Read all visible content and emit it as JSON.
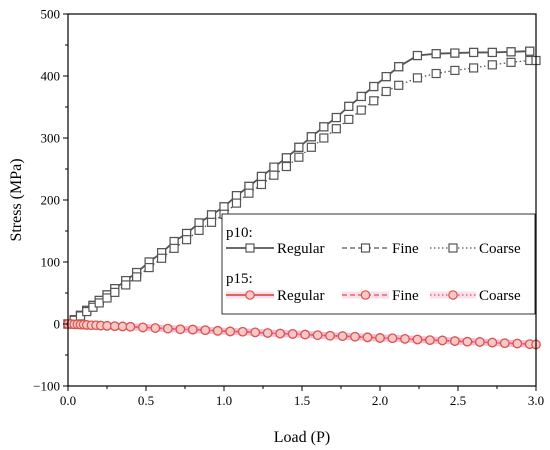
{
  "chart_data": {
    "type": "line",
    "title": "",
    "xlabel": "Load (P)",
    "ylabel": "Stress (MPa)",
    "xlim": [
      0.0,
      3.0
    ],
    "ylim": [
      -100,
      500
    ],
    "xticks": [
      "0.0",
      "0.5",
      "1.0",
      "1.5",
      "2.0",
      "2.5",
      "3.0"
    ],
    "yticks": [
      "−100",
      "0",
      "100",
      "200",
      "300",
      "400",
      "500"
    ],
    "xtick_values": [
      0.0,
      0.5,
      1.0,
      1.5,
      2.0,
      2.5,
      3.0
    ],
    "ytick_values": [
      -100,
      0,
      100,
      200,
      300,
      400,
      500
    ],
    "grid": false,
    "legend_position": "center-right",
    "legend_groups": [
      {
        "title": "p10:",
        "series": [
          0,
          1,
          2
        ]
      },
      {
        "title": "p15:",
        "series": [
          3,
          4,
          5
        ]
      }
    ],
    "series": [
      {
        "name": "Regular",
        "color": "#555555",
        "marker": "square",
        "line_style": "solid",
        "halo": false,
        "x": [
          0.0,
          0.04,
          0.08,
          0.12,
          0.16,
          0.2,
          0.25,
          0.3,
          0.37,
          0.44,
          0.52,
          0.6,
          0.68,
          0.76,
          0.84,
          0.92,
          1.0,
          1.08,
          1.16,
          1.24,
          1.32,
          1.4,
          1.48,
          1.56,
          1.64,
          1.72,
          1.8,
          1.88,
          1.96,
          2.04,
          2.12,
          2.24,
          2.36,
          2.48,
          2.6,
          2.72,
          2.84,
          2.96
        ],
        "y": [
          0,
          7,
          14,
          22,
          30,
          38,
          47,
          57,
          70,
          83,
          100,
          115,
          133,
          146,
          163,
          176,
          189,
          207,
          222,
          238,
          253,
          268,
          285,
          302,
          318,
          333,
          351,
          367,
          383,
          399,
          415,
          433,
          436,
          437,
          438,
          438,
          439,
          440
        ]
      },
      {
        "name": "Fine",
        "color": "#555555",
        "marker": "square",
        "line_style": "dashed",
        "halo": false,
        "x": [
          0.0,
          0.04,
          0.08,
          0.12,
          0.16,
          0.2,
          0.25,
          0.3,
          0.37,
          0.44,
          0.52,
          0.6,
          0.68,
          0.76,
          0.84,
          0.92,
          1.0,
          1.08,
          1.16,
          1.24,
          1.32,
          1.4,
          1.48,
          1.56,
          1.64,
          1.72,
          1.8,
          1.88,
          1.96,
          2.04,
          2.12,
          2.24,
          2.36,
          2.48,
          2.6,
          2.72,
          2.84,
          2.96
        ],
        "y": [
          0,
          7,
          14,
          22,
          30,
          38,
          47,
          57,
          70,
          83,
          100,
          115,
          133,
          146,
          163,
          176,
          189,
          207,
          222,
          238,
          253,
          268,
          285,
          302,
          318,
          333,
          351,
          367,
          383,
          399,
          415,
          433,
          436,
          437,
          438,
          438,
          439,
          440
        ]
      },
      {
        "name": "Coarse",
        "color": "#555555",
        "marker": "square",
        "line_style": "dotted",
        "halo": false,
        "x": [
          0.0,
          0.04,
          0.08,
          0.12,
          0.16,
          0.2,
          0.25,
          0.3,
          0.37,
          0.44,
          0.52,
          0.6,
          0.68,
          0.76,
          0.84,
          0.92,
          1.0,
          1.08,
          1.16,
          1.24,
          1.32,
          1.4,
          1.48,
          1.56,
          1.64,
          1.72,
          1.8,
          1.88,
          1.96,
          2.04,
          2.12,
          2.24,
          2.36,
          2.48,
          2.6,
          2.72,
          2.84,
          2.96,
          3.0
        ],
        "y": [
          0,
          6,
          13,
          20,
          27,
          34,
          42,
          51,
          63,
          76,
          91,
          106,
          122,
          136,
          151,
          164,
          177,
          195,
          211,
          225,
          240,
          254,
          269,
          285,
          300,
          315,
          330,
          345,
          360,
          375,
          385,
          397,
          404,
          409,
          413,
          418,
          422,
          425,
          425
        ]
      },
      {
        "name": "Regular",
        "color": "#d9534f",
        "marker": "circle",
        "line_style": "solid",
        "halo": true,
        "x": [
          0.0,
          0.02,
          0.04,
          0.06,
          0.08,
          0.1,
          0.12,
          0.15,
          0.18,
          0.21,
          0.25,
          0.3,
          0.35,
          0.4,
          0.48,
          0.56,
          0.64,
          0.72,
          0.8,
          0.88,
          0.96,
          1.04,
          1.12,
          1.2,
          1.28,
          1.36,
          1.44,
          1.52,
          1.6,
          1.68,
          1.76,
          1.84,
          1.92,
          2.0,
          2.08,
          2.16,
          2.24,
          2.32,
          2.4,
          2.48,
          2.56,
          2.64,
          2.72,
          2.8,
          2.88,
          2.96,
          3.0
        ],
        "y": [
          0,
          0,
          -0.5,
          -0.5,
          -1,
          -1,
          -1.5,
          -2,
          -2,
          -2.5,
          -3,
          -3.5,
          -4,
          -4.5,
          -5.5,
          -6.5,
          -7.5,
          -8.5,
          -9,
          -10,
          -11,
          -12,
          -12.5,
          -13.5,
          -14.5,
          -15.5,
          -16,
          -17,
          -18,
          -19,
          -19.5,
          -20.5,
          -21.5,
          -22.5,
          -23,
          -24,
          -25,
          -26,
          -26.5,
          -27.5,
          -28.5,
          -29,
          -30,
          -31,
          -31.5,
          -32.5,
          -33
        ]
      },
      {
        "name": "Fine",
        "color": "#d9534f",
        "marker": "circle",
        "line_style": "dashed",
        "halo": true,
        "x": [
          0.0,
          0.02,
          0.04,
          0.06,
          0.08,
          0.1,
          0.12,
          0.15,
          0.18,
          0.21,
          0.25,
          0.3,
          0.35,
          0.4,
          0.48,
          0.56,
          0.64,
          0.72,
          0.8,
          0.88,
          0.96,
          1.04,
          1.12,
          1.2,
          1.28,
          1.36,
          1.44,
          1.52,
          1.6,
          1.68,
          1.76,
          1.84,
          1.92,
          2.0,
          2.08,
          2.16,
          2.24,
          2.32,
          2.4,
          2.48,
          2.56,
          2.64,
          2.72,
          2.8,
          2.88,
          2.96,
          3.0
        ],
        "y": [
          0,
          0,
          -0.5,
          -0.5,
          -1,
          -1,
          -1.5,
          -2,
          -2,
          -2.5,
          -3,
          -3.5,
          -4,
          -4.5,
          -5.5,
          -6.5,
          -7.5,
          -8.5,
          -9,
          -10,
          -11,
          -12,
          -12.5,
          -13.5,
          -14.5,
          -15.5,
          -16,
          -17,
          -18,
          -19,
          -19.5,
          -20.5,
          -21.5,
          -22.5,
          -23,
          -24,
          -25,
          -26,
          -26.5,
          -27.5,
          -28.5,
          -29,
          -30,
          -31,
          -31.5,
          -32.5,
          -33
        ]
      },
      {
        "name": "Coarse",
        "color": "#d9534f",
        "marker": "circle",
        "line_style": "dotted",
        "halo": true,
        "x": [
          0.0,
          0.02,
          0.04,
          0.06,
          0.08,
          0.1,
          0.12,
          0.15,
          0.18,
          0.21,
          0.25,
          0.3,
          0.35,
          0.4,
          0.48,
          0.56,
          0.64,
          0.72,
          0.8,
          0.88,
          0.96,
          1.04,
          1.12,
          1.2,
          1.28,
          1.36,
          1.44,
          1.52,
          1.6,
          1.68,
          1.76,
          1.84,
          1.92,
          2.0,
          2.08,
          2.16,
          2.24,
          2.32,
          2.4,
          2.48,
          2.56,
          2.64,
          2.72,
          2.8,
          2.88,
          2.96,
          3.0
        ],
        "y": [
          0,
          0,
          -0.5,
          -0.5,
          -1,
          -1,
          -1.5,
          -2,
          -2,
          -2.5,
          -3,
          -3.5,
          -4,
          -4.5,
          -5.5,
          -6.5,
          -7.5,
          -8.5,
          -9,
          -10,
          -11,
          -12,
          -12.5,
          -13.5,
          -14.5,
          -15.5,
          -16,
          -17,
          -18,
          -19,
          -19.5,
          -20.5,
          -21.5,
          -22.5,
          -23,
          -24,
          -25,
          -26,
          -26.5,
          -27.5,
          -28.5,
          -29,
          -30,
          -31,
          -31.5,
          -32.5,
          -33
        ]
      }
    ]
  }
}
